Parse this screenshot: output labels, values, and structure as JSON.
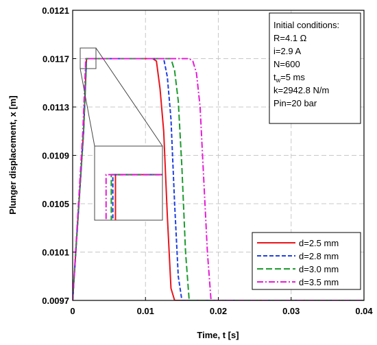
{
  "chart_data": {
    "type": "line",
    "xlabel": "Time, t [s]",
    "ylabel": "Plunger displacement, x [m]",
    "xlim": [
      0,
      0.04
    ],
    "ylim": [
      0.0097,
      0.0121
    ],
    "x_ticks": [
      0,
      0.01,
      0.02,
      0.03,
      0.04
    ],
    "x_tick_labels": [
      "0",
      "0.01",
      "0.02",
      "0.03",
      "0.04"
    ],
    "y_ticks": [
      0.0097,
      0.0101,
      0.0105,
      0.0109,
      0.0113,
      0.0117,
      0.0121
    ],
    "y_tick_labels": [
      "0.0097",
      "0.0101",
      "0.0105",
      "0.0109",
      "0.0113",
      "0.0117",
      "0.0121"
    ],
    "grid": true,
    "legend_position": "bottom-right",
    "info_box": {
      "title": "Initial conditions:",
      "lines": [
        {
          "name": "R",
          "text": "R=4.1 Ω"
        },
        {
          "name": "i",
          "text": "i=2.9 A"
        },
        {
          "name": "N",
          "text": "N=600"
        },
        {
          "name": "tw",
          "base": "t",
          "sub": "w",
          "rest": "=5 ms"
        },
        {
          "name": "k",
          "text": "k=2942.8 N/m"
        },
        {
          "name": "pin",
          "text": "Pin=20 bar"
        }
      ]
    },
    "inset": {
      "xlim": [
        0.0015,
        0.0028
      ],
      "ylim": [
        0.01165,
        0.01172
      ]
    },
    "series": [
      {
        "name": "d=2.5 mm",
        "color": "#e8141b",
        "dash": "solid",
        "x": [
          0,
          0.0015,
          0.0019,
          0.0021,
          0.011,
          0.0115,
          0.012,
          0.0125,
          0.013,
          0.0135,
          0.014,
          0.04
        ],
        "y": [
          0.0097,
          0.0111,
          0.0117,
          0.0117,
          0.0117,
          0.01168,
          0.01145,
          0.0111,
          0.0104,
          0.0098,
          0.0097,
          0.0097
        ]
      },
      {
        "name": "d=2.8 mm",
        "color": "#1f3fe0",
        "dash": "dashed",
        "x": [
          0,
          0.0015,
          0.0019,
          0.0022,
          0.012,
          0.0125,
          0.013,
          0.0135,
          0.014,
          0.0145,
          0.015,
          0.04
        ],
        "y": [
          0.0097,
          0.0111,
          0.0117,
          0.0117,
          0.0117,
          0.0117,
          0.01155,
          0.0112,
          0.0105,
          0.0099,
          0.0097,
          0.0097
        ]
      },
      {
        "name": "d=3.0 mm",
        "color": "#1b9a2e",
        "dash": "longdash",
        "x": [
          0,
          0.0015,
          0.0019,
          0.0022,
          0.013,
          0.0135,
          0.014,
          0.0145,
          0.015,
          0.0155,
          0.016,
          0.04
        ],
        "y": [
          0.0097,
          0.0111,
          0.0117,
          0.0117,
          0.0117,
          0.0117,
          0.0116,
          0.01135,
          0.0108,
          0.0101,
          0.0097,
          0.0097
        ]
      },
      {
        "name": "d=3.5 mm",
        "color": "#e61ad6",
        "dash": "dashdot",
        "x": [
          0,
          0.0014,
          0.0018,
          0.0021,
          0.016,
          0.0165,
          0.017,
          0.0175,
          0.018,
          0.0185,
          0.019,
          0.04
        ],
        "y": [
          0.0097,
          0.0111,
          0.0117,
          0.0117,
          0.0117,
          0.01168,
          0.01158,
          0.0113,
          0.0107,
          0.0101,
          0.0097,
          0.0097
        ]
      }
    ]
  }
}
